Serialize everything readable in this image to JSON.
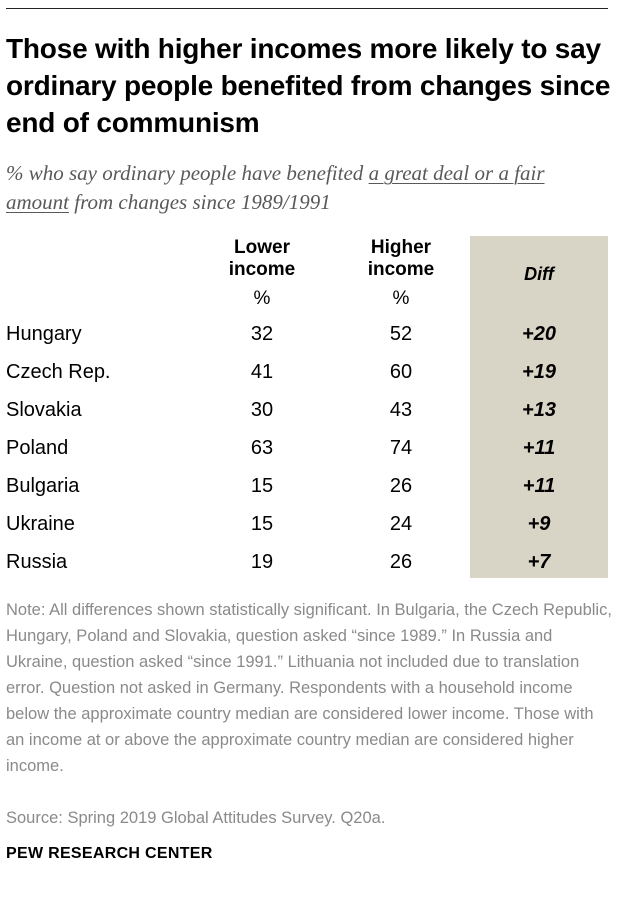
{
  "title": "Those with higher incomes more likely to say ordinary people benefited from changes since end of communism",
  "subtitle": {
    "prefix": "% who say ordinary people have benefited ",
    "underlined": "a great deal or a fair amount",
    "suffix": " from changes since 1989/1991"
  },
  "chart_data": {
    "type": "table",
    "columns": {
      "lower": "Lower income",
      "higher": "Higher income",
      "unit": "%",
      "diff": "Diff"
    },
    "rows": [
      {
        "country": "Hungary",
        "lower": 32,
        "higher": 52,
        "diff": "+20"
      },
      {
        "country": "Czech Rep.",
        "lower": 41,
        "higher": 60,
        "diff": "+19"
      },
      {
        "country": "Slovakia",
        "lower": 30,
        "higher": 43,
        "diff": "+13"
      },
      {
        "country": "Poland",
        "lower": 63,
        "higher": 74,
        "diff": "+11"
      },
      {
        "country": "Bulgaria",
        "lower": 15,
        "higher": 26,
        "diff": "+11"
      },
      {
        "country": "Ukraine",
        "lower": 15,
        "higher": 24,
        "diff": "+9"
      },
      {
        "country": "Russia",
        "lower": 19,
        "higher": 26,
        "diff": "+7"
      }
    ],
    "diff_highlight_color": "#d9d5c6"
  },
  "note": "Note: All differences shown statistically significant. In Bulgaria, the Czech Republic, Hungary, Poland and Slovakia, question asked “since 1989.” In Russia and Ukraine, question asked “since 1991.” Lithuania not included due to translation error. Question not asked in Germany. Respondents with a household income below the approximate country median are considered lower income. Those with an income at or above the approximate country median are considered higher income.",
  "source": "Source: Spring 2019 Global Attitudes Survey. Q20a.",
  "brand": "PEW RESEARCH CENTER"
}
